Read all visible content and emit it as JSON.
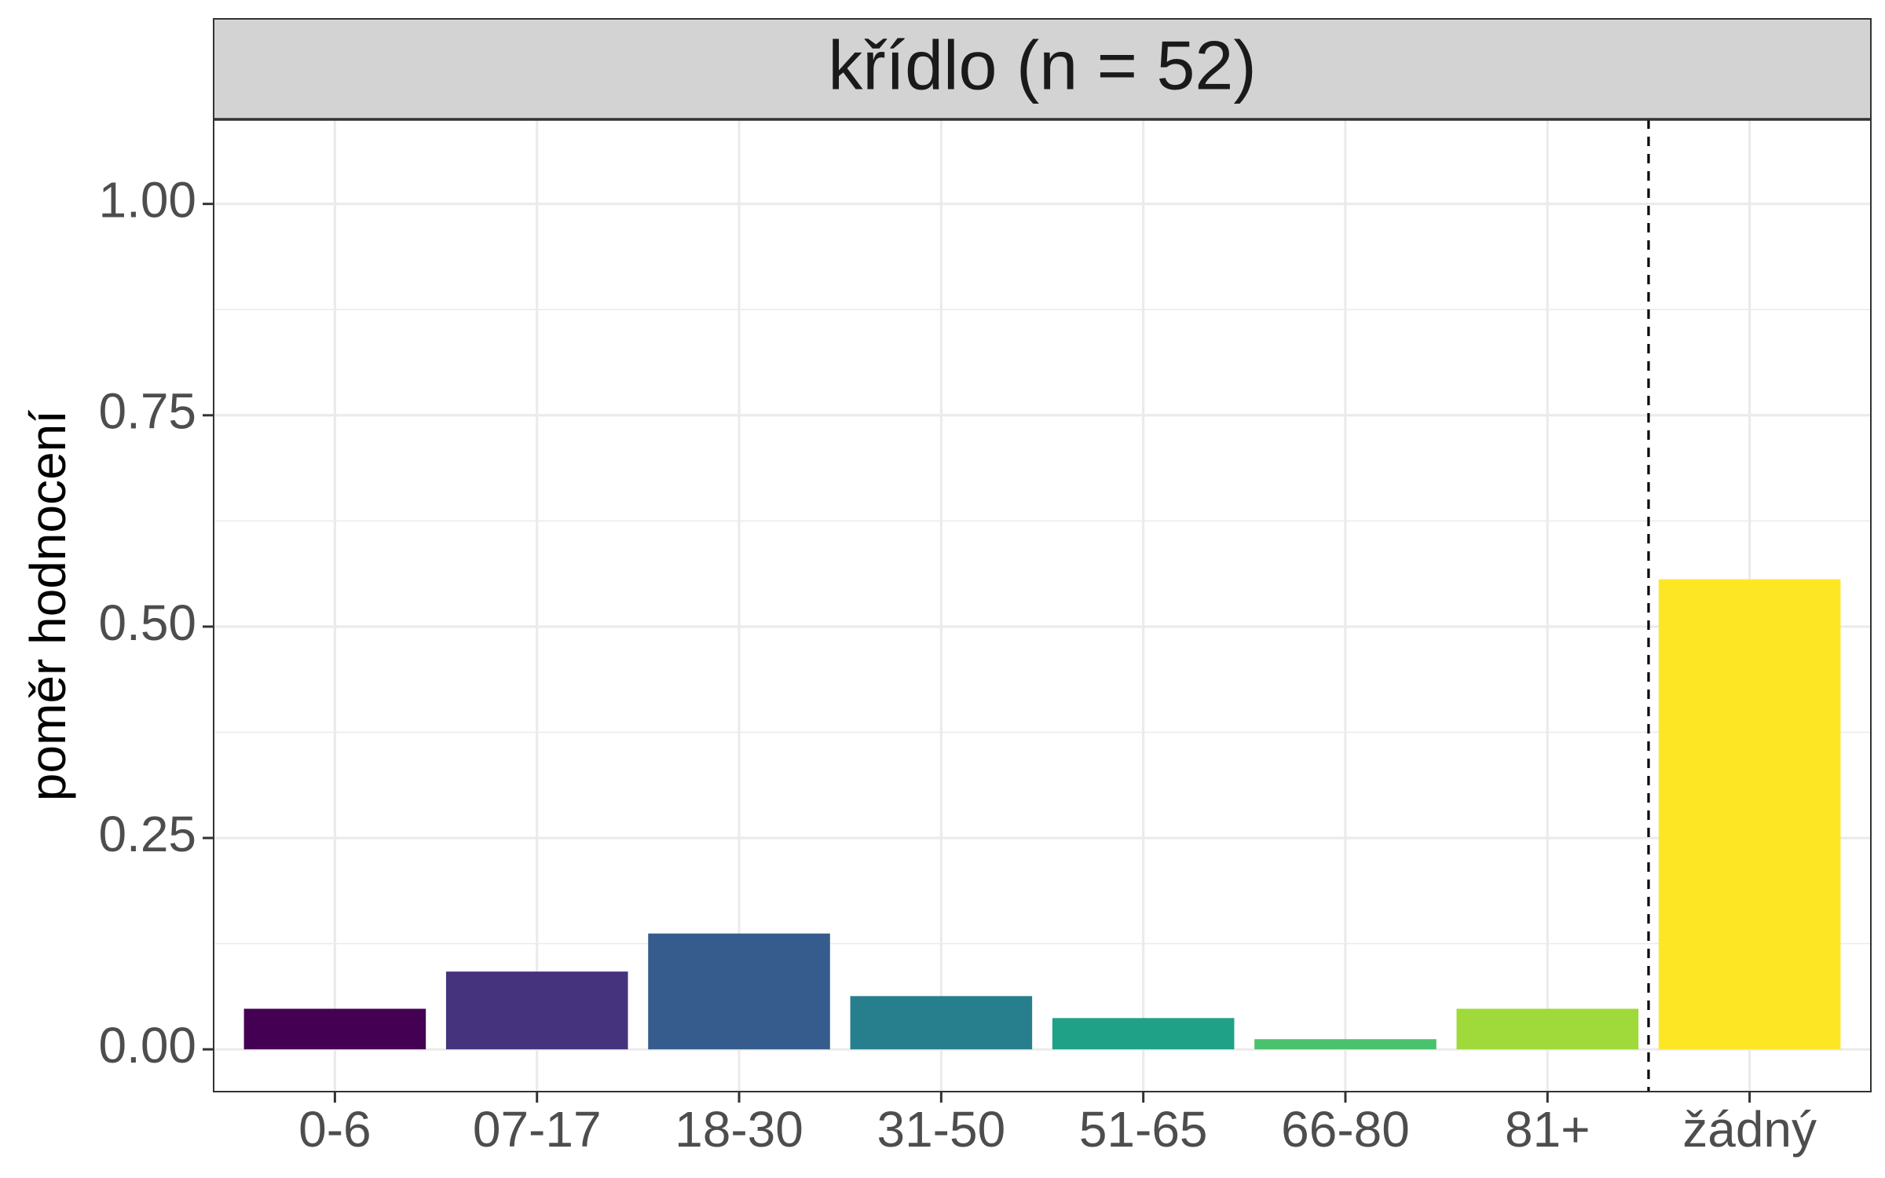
{
  "chart_data": {
    "type": "bar",
    "panel_title": "křídlo (n = 52)",
    "title": "",
    "xlabel": "",
    "ylabel": "poměr hodnocení",
    "categories": [
      "0-6",
      "07-17",
      "18-30",
      "31-50",
      "51-65",
      "66-80",
      "81+",
      "žádný"
    ],
    "values": [
      0.048,
      0.092,
      0.137,
      0.063,
      0.037,
      0.012,
      0.048,
      0.556
    ],
    "colors": [
      "#440154",
      "#46337E",
      "#365C8D",
      "#277F8E",
      "#1FA187",
      "#4AC16D",
      "#9FDA3A",
      "#FDE725"
    ],
    "ylim": [
      -0.05,
      1.1
    ],
    "y_ticks": [
      0.0,
      0.25,
      0.5,
      0.75,
      1.0
    ],
    "y_tick_labels": [
      "0.00",
      "0.25",
      "0.50",
      "0.75",
      "1.00"
    ],
    "y_minor_ticks": [
      0.125,
      0.375,
      0.625,
      0.875
    ],
    "grid": true,
    "separator": {
      "style": "dashed",
      "between_categories": [
        "81+",
        "žádný"
      ]
    },
    "legend": "none"
  }
}
